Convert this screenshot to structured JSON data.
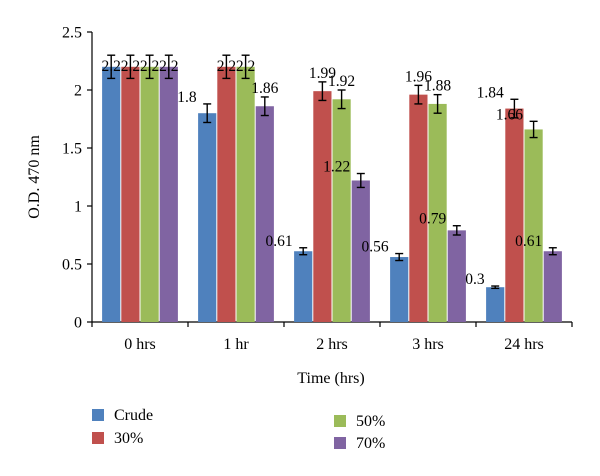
{
  "chart_data": {
    "type": "bar",
    "title": "",
    "xlabel": "Time (hrs)",
    "ylabel": "O.D. 470 nm",
    "ylim": [
      0,
      2.5
    ],
    "yticks": [
      "0",
      "0.5",
      "1",
      "1.5",
      "2",
      "2.5"
    ],
    "categories": [
      "0 hrs",
      "1 hr",
      "2 hrs",
      "3 hrs",
      "24 hrs"
    ],
    "legend_position": "bottom",
    "series": [
      {
        "name": "Crude",
        "color": "#4F81BD",
        "values": [
          2.2,
          1.8,
          0.61,
          0.56,
          0.3
        ],
        "labels": [
          "2.2",
          "1.8",
          "0.61",
          "0.56",
          "0.3"
        ],
        "errors": [
          0.1,
          0.08,
          0.03,
          0.03,
          0.01
        ]
      },
      {
        "name": "30%",
        "color": "#C0504D",
        "values": [
          2.2,
          2.2,
          1.99,
          1.96,
          1.84
        ],
        "labels": [
          "2.2",
          "2.2",
          "1.99",
          "1.96",
          "1.84"
        ],
        "errors": [
          0.1,
          0.1,
          0.08,
          0.08,
          0.08
        ]
      },
      {
        "name": "50%",
        "color": "#9BBB59",
        "values": [
          2.2,
          2.2,
          1.92,
          1.88,
          1.66
        ],
        "labels": [
          "2.2",
          "2.2",
          "1.92",
          "1.88",
          "1.66"
        ],
        "errors": [
          0.1,
          0.1,
          0.08,
          0.08,
          0.07
        ]
      },
      {
        "name": "70%",
        "color": "#8064A2",
        "values": [
          2.2,
          1.86,
          1.22,
          0.79,
          0.61
        ],
        "labels": [
          "2.2",
          "1.86",
          "1.22",
          "0.79",
          "0.61"
        ],
        "errors": [
          0.1,
          0.08,
          0.06,
          0.04,
          0.03
        ]
      }
    ]
  }
}
